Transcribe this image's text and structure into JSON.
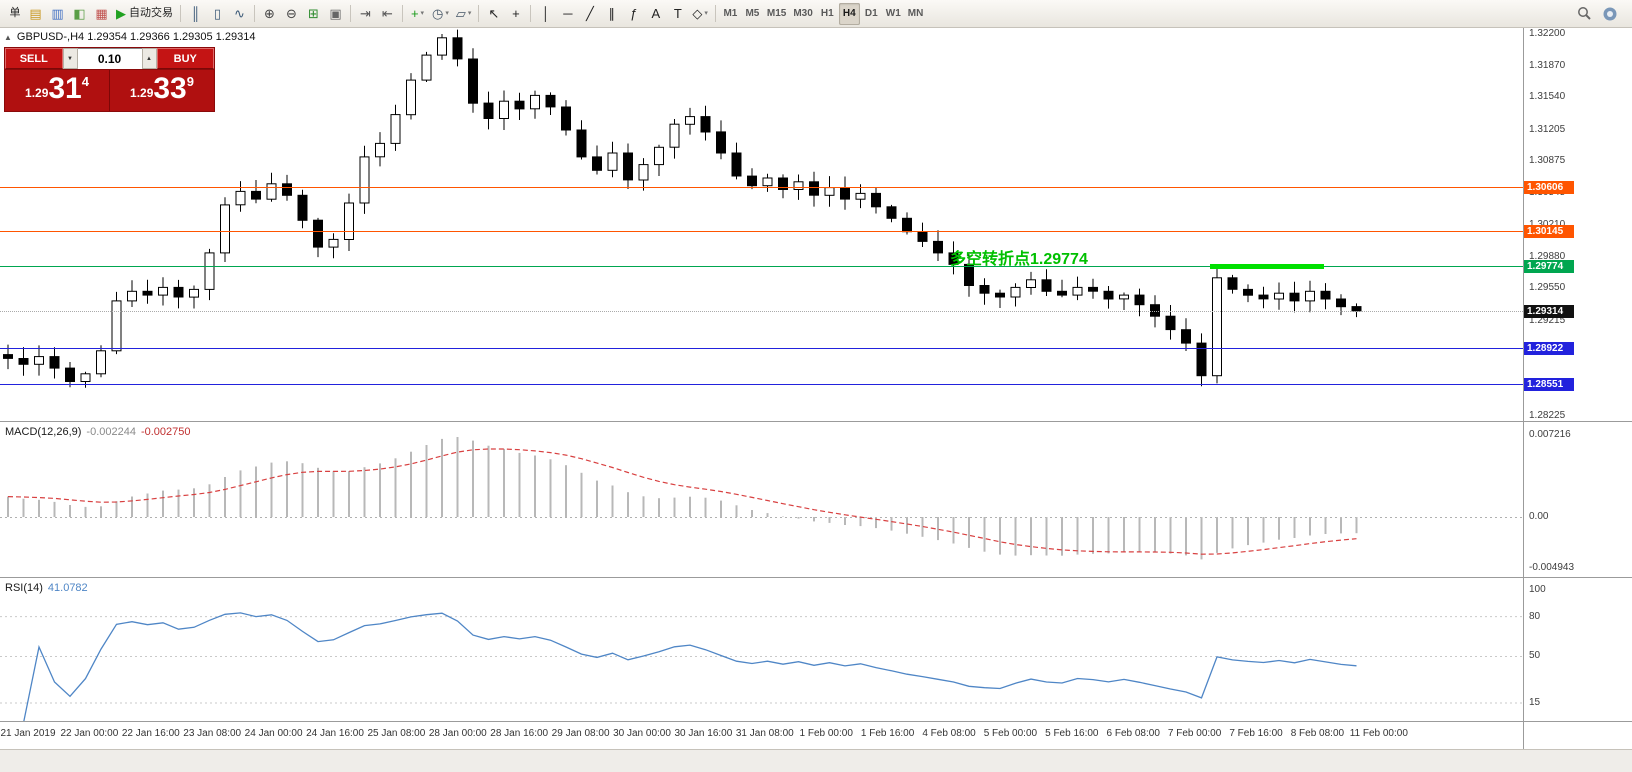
{
  "toolbar": {
    "items": [
      {
        "name": "new-order-button",
        "label": "单"
      },
      {
        "name": "market-watch-icon",
        "glyph": "▤",
        "color": "#c8961e"
      },
      {
        "name": "data-window-icon",
        "glyph": "▥",
        "color": "#4472c4"
      },
      {
        "name": "navigator-icon",
        "glyph": "◧",
        "color": "#5a9e46"
      },
      {
        "name": "terminal-icon",
        "glyph": "▦",
        "color": "#c0504d"
      },
      {
        "name": "autotrade-button",
        "glyph": "▶",
        "color": "#21a121",
        "label": "自动交易"
      },
      {
        "type": "sep"
      },
      {
        "name": "bar-chart-button",
        "glyph": "║",
        "color": "#3c5a78"
      },
      {
        "name": "candlestick-chart-button",
        "glyph": "▯",
        "color": "#3c5a78"
      },
      {
        "name": "line-chart-button",
        "glyph": "∿",
        "color": "#3c5a78"
      },
      {
        "type": "sep"
      },
      {
        "name": "zoom-in-button",
        "glyph": "⊕",
        "color": "#444444"
      },
      {
        "name": "zoom-out-button",
        "glyph": "⊖",
        "color": "#444444"
      },
      {
        "name": "grid-button",
        "glyph": "⊞",
        "color": "#2e8b2e"
      },
      {
        "name": "tile-windows-button",
        "glyph": "▣",
        "color": "#666666"
      },
      {
        "type": "sep"
      },
      {
        "name": "auto-scroll-button",
        "glyph": "⇥",
        "color": "#555555"
      },
      {
        "name": "chart-shift-button",
        "glyph": "⇤",
        "color": "#555555"
      },
      {
        "type": "sep"
      },
      {
        "name": "indicators-button",
        "glyph": "+",
        "color": "#1a9a1a",
        "caret": true
      },
      {
        "name": "periods-button",
        "glyph": "◷",
        "color": "#445566",
        "caret": true
      },
      {
        "name": "templates-button",
        "glyph": "▱",
        "color": "#445566",
        "caret": true
      },
      {
        "type": "sep"
      },
      {
        "name": "cursor-button",
        "glyph": "↖",
        "color": "#222222"
      },
      {
        "name": "crosshair-button",
        "glyph": "+",
        "color": "#222222"
      },
      {
        "type": "sep"
      },
      {
        "name": "vertical-line-button",
        "glyph": "│",
        "color": "#222222"
      },
      {
        "name": "horizontal-line-button",
        "glyph": "─",
        "color": "#222222"
      },
      {
        "name": "trendline-button",
        "glyph": "╱",
        "color": "#222222"
      },
      {
        "name": "channel-button",
        "glyph": "∥",
        "color": "#222222"
      },
      {
        "name": "fibonacci-button",
        "glyph": "ƒ",
        "color": "#222222"
      },
      {
        "name": "text-button",
        "glyph": "A",
        "color": "#222222"
      },
      {
        "name": "text-label-button",
        "glyph": "T",
        "color": "#222222"
      },
      {
        "name": "shapes-button",
        "glyph": "◇",
        "color": "#222222",
        "caret": true
      },
      {
        "type": "sep"
      }
    ],
    "timeframes": [
      {
        "label": "M1"
      },
      {
        "label": "M5"
      },
      {
        "label": "M15"
      },
      {
        "label": "M30"
      },
      {
        "label": "H1"
      },
      {
        "label": "H4",
        "active": true
      },
      {
        "label": "D1"
      },
      {
        "label": "W1"
      },
      {
        "label": "MN"
      }
    ]
  },
  "symbol_bar": {
    "collapse_icon": "▲",
    "text": "GBPUSD-,H4 1.29354 1.29366 1.29305 1.29314"
  },
  "oneclick": {
    "sell_label": "SELL",
    "buy_label": "BUY",
    "lot_size": "0.10",
    "spin_up_glyph": "▲",
    "spin_down_glyph": "▼",
    "sell_price": {
      "prefix": "1.29",
      "big": "31",
      "sup": "4"
    },
    "buy_price": {
      "prefix": "1.29",
      "big": "33",
      "sup": "9"
    }
  },
  "chart_data": [
    {
      "type": "candlestick",
      "title": "GBPUSD- H4",
      "x_labels": [
        "21 Jan 2019",
        "22 Jan 00:00",
        "22 Jan 16:00",
        "23 Jan 08:00",
        "24 Jan 00:00",
        "24 Jan 16:00",
        "25 Jan 08:00",
        "28 Jan 00:00",
        "28 Jan 16:00",
        "29 Jan 08:00",
        "30 Jan 00:00",
        "30 Jan 16:00",
        "31 Jan 08:00",
        "1 Feb 00:00",
        "1 Feb 16:00",
        "4 Feb 08:00",
        "5 Feb 00:00",
        "5 Feb 16:00",
        "6 Feb 08:00",
        "7 Feb 00:00",
        "7 Feb 16:00",
        "8 Feb 08:00",
        "11 Feb 00:00"
      ],
      "y_axis_labels": [
        "1.32200",
        "1.31870",
        "1.31540",
        "1.31205",
        "1.30875",
        "1.30545",
        "1.30210",
        "1.29880",
        "1.29550",
        "1.29215",
        "1.28885",
        "1.28555",
        "1.28225"
      ],
      "candles": {
        "first_open": 1.2886,
        "closes": [
          1.2882,
          1.2876,
          1.2884,
          1.2872,
          1.2858,
          1.2866,
          1.289,
          1.2942,
          1.2952,
          1.2948,
          1.2956,
          1.2946,
          1.2954,
          1.2992,
          1.3042,
          1.3056,
          1.3048,
          1.3064,
          1.3052,
          1.3026,
          1.2998,
          1.3006,
          1.3044,
          1.3092,
          1.3106,
          1.3136,
          1.3172,
          1.3198,
          1.3216,
          1.3194,
          1.3148,
          1.3132,
          1.315,
          1.3142,
          1.3156,
          1.3144,
          1.312,
          1.3092,
          1.3078,
          1.3096,
          1.3068,
          1.3084,
          1.3102,
          1.3126,
          1.3134,
          1.3118,
          1.3096,
          1.3072,
          1.3062,
          1.307,
          1.3058,
          1.3066,
          1.3052,
          1.306,
          1.3048,
          1.3054,
          1.304,
          1.3028,
          1.3014,
          1.3004,
          1.2992,
          1.298,
          1.2958,
          1.295,
          1.2946,
          1.2956,
          1.2964,
          1.2952,
          1.2948,
          1.2956,
          1.2952,
          1.2944,
          1.2948,
          1.2938,
          1.2926,
          1.2912,
          1.2898,
          1.2864,
          1.2966,
          1.2954,
          1.2948,
          1.2944,
          1.295,
          1.2942,
          1.2952,
          1.2944,
          1.2936,
          1.29314
        ],
        "special": {
          "4": {
            "low": 1.2852
          },
          "28": {
            "high": 1.322
          },
          "77": {
            "low": 1.2853
          },
          "78": {
            "low": 1.2856,
            "high": 1.2976
          }
        }
      },
      "levels": [
        {
          "price": 1.30606,
          "label": "1.30606",
          "color": "#ff5500"
        },
        {
          "price": 1.30145,
          "label": "1.30145",
          "color": "#ff5500"
        },
        {
          "price": 1.29774,
          "label": "1.29774",
          "color": "#00a650"
        },
        {
          "price": 1.28922,
          "label": "1.28922",
          "color": "#2222dd"
        },
        {
          "price": 1.28551,
          "label": "1.28551",
          "color": "#2222dd"
        },
        {
          "price": 1.29314,
          "label": "1.29314",
          "color": "#aaaaaa",
          "tag_color": "#111111",
          "style": "dotted",
          "role": "current-price"
        }
      ],
      "annotation": {
        "text": "多空转折点1.29774",
        "color": "#00c000"
      },
      "highlight_segment": {
        "price": 1.29774,
        "color": "#00e000"
      }
    },
    {
      "type": "bar",
      "name": "MACD",
      "label": "MACD(12,26,9)",
      "value_main": "-0.002244",
      "value_signal": "-0.002750",
      "axis_labels": [
        "0.007216",
        "0.00",
        "-0.004943"
      ],
      "histogram_color": "#b8b8b8",
      "signal_color": "#d84040"
    },
    {
      "type": "line",
      "name": "RSI",
      "label": "RSI(14)",
      "value": "41.0782",
      "axis_labels": [
        "100",
        "80",
        "50",
        "15"
      ],
      "level_lines": [
        80,
        50,
        15
      ],
      "line_color": "#4f86c6"
    }
  ]
}
